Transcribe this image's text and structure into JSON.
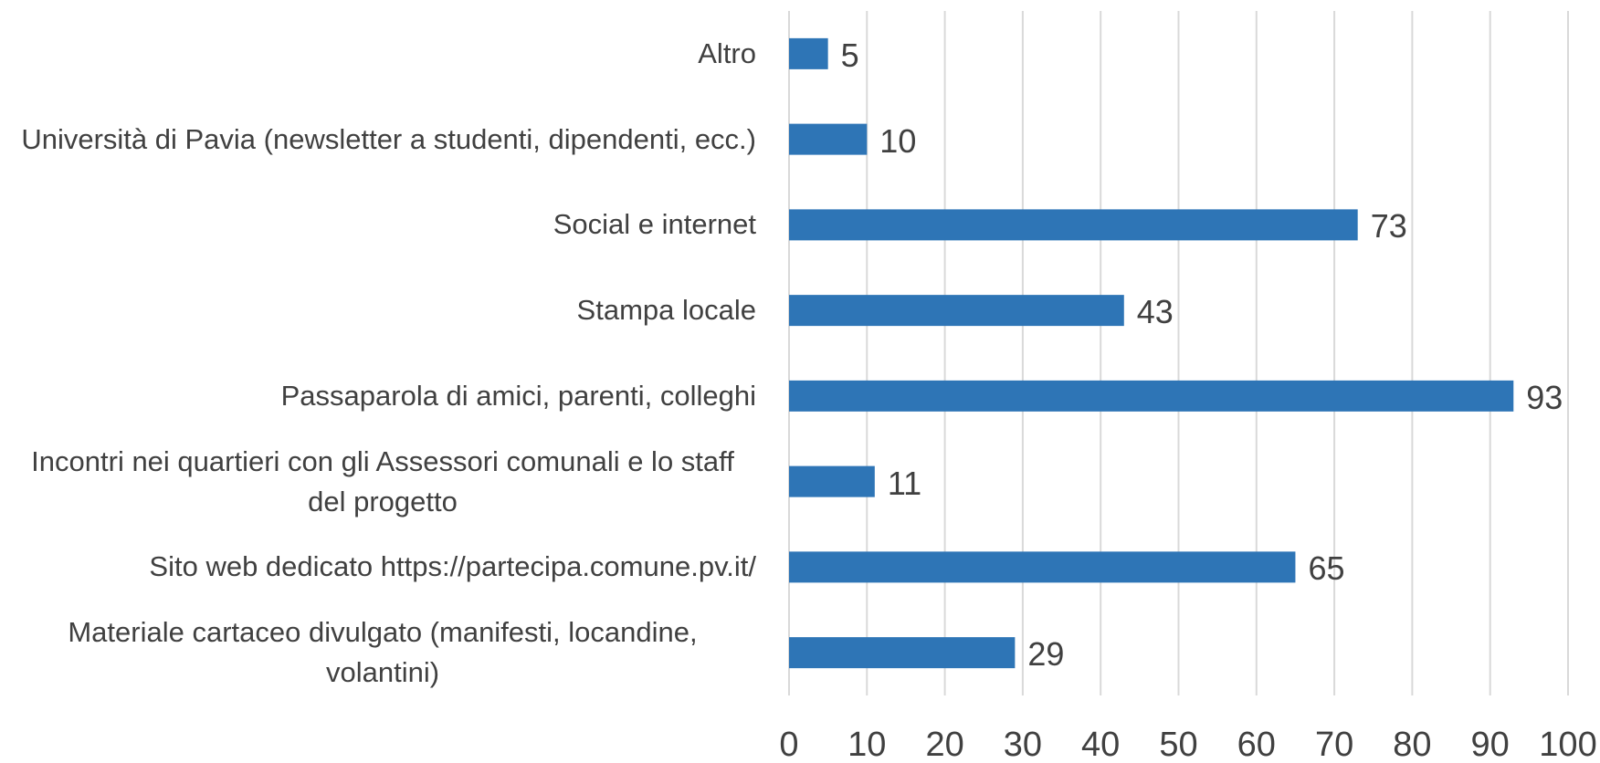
{
  "chart_data": {
    "type": "bar",
    "orientation": "horizontal",
    "categories": [
      "Altro",
      "Università di Pavia (newsletter a studenti, dipendenti, ecc.)",
      "Social e internet",
      "Stampa locale",
      "Passaparola di amici, parenti, colleghi",
      "Incontri nei quartieri con gli Assessori comunali e lo staff del progetto",
      "Sito web dedicato https://partecipa.comune.pv.it/",
      "Materiale cartaceo divulgato (manifesti, locandine, volantini)"
    ],
    "values": [
      5,
      10,
      73,
      43,
      93,
      11,
      65,
      29
    ],
    "color": "#2e75b6",
    "xlim": [
      0,
      100
    ],
    "xticks": [
      0,
      10,
      20,
      30,
      40,
      50,
      60,
      70,
      80,
      90,
      100
    ],
    "grid": true
  }
}
